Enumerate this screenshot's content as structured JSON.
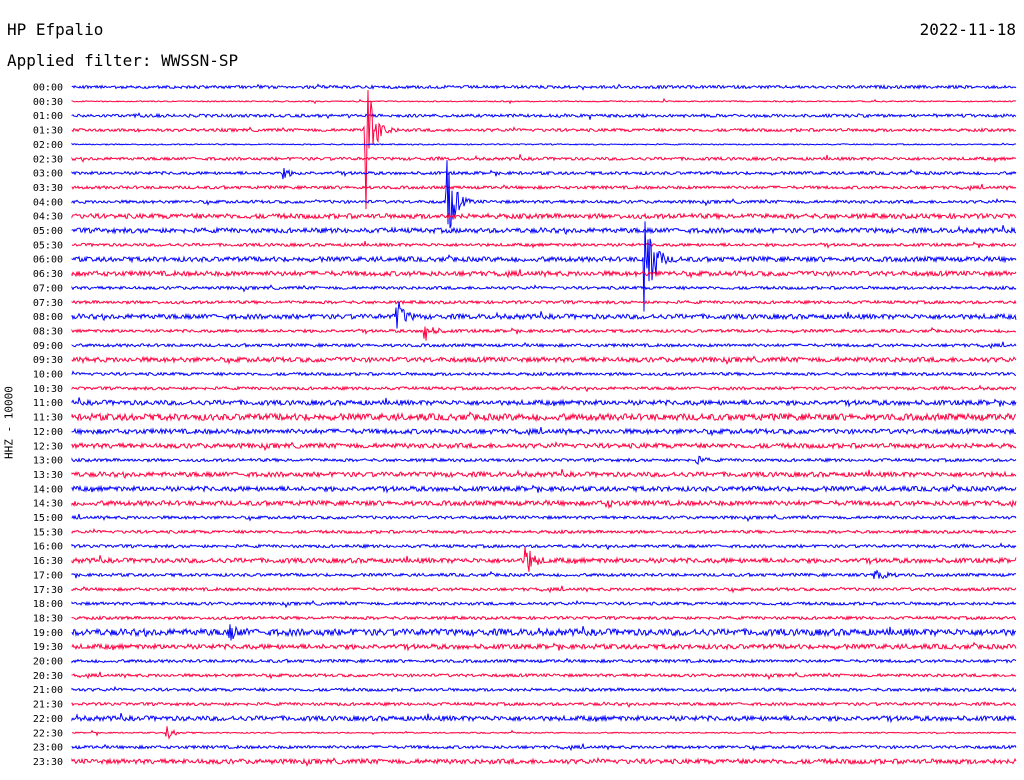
{
  "header": {
    "station": "HP Efpalio",
    "date": "2022-11-18",
    "filter_label": "Applied filter: WWSSN-SP"
  },
  "axis": {
    "channel_label": "HHZ - 10000"
  },
  "colors": {
    "trace_even": "#0000ff",
    "trace_odd": "#ff0040",
    "background": "#ffffff",
    "text": "#000000"
  },
  "chart_data": {
    "type": "line",
    "title": "HP Efpalio",
    "subtitle": "Applied filter: WWSSN-SP",
    "ylabel": "HHZ - 10000",
    "xlabel": "",
    "date": "2022-11-18",
    "row_interval_minutes": 30,
    "row_labels": [
      "00:00",
      "00:30",
      "01:00",
      "01:30",
      "02:00",
      "02:30",
      "03:00",
      "03:30",
      "04:00",
      "04:30",
      "05:00",
      "05:30",
      "06:00",
      "06:30",
      "07:00",
      "07:30",
      "08:00",
      "08:30",
      "09:00",
      "09:30",
      "10:00",
      "10:30",
      "11:00",
      "11:30",
      "12:00",
      "12:30",
      "13:00",
      "13:30",
      "14:00",
      "14:30",
      "15:00",
      "15:30",
      "16:00",
      "16:30",
      "17:00",
      "17:30",
      "18:00",
      "18:30",
      "19:00",
      "19:30",
      "20:00",
      "20:30",
      "21:00",
      "21:30",
      "22:00",
      "22:30",
      "23:00",
      "23:30"
    ],
    "series_colors": [
      "#0000ff",
      "#ff0040"
    ],
    "noise_level": [
      1,
      0,
      1,
      1,
      0,
      1,
      1,
      1,
      1,
      2,
      2,
      1,
      2,
      2,
      1,
      1,
      2,
      1,
      1,
      2,
      1,
      1,
      2,
      3,
      2,
      2,
      1,
      2,
      2,
      2,
      1,
      1,
      1,
      2,
      1,
      1,
      1,
      1,
      3,
      2,
      1,
      1,
      1,
      1,
      2,
      0,
      1,
      2
    ],
    "events": [
      {
        "row": 3,
        "minute": 9.3,
        "amplitude": 100
      },
      {
        "row": 8,
        "minute": 11.9,
        "amplitude": 60
      },
      {
        "row": 12,
        "minute": 18.2,
        "amplitude": 90
      },
      {
        "row": 16,
        "minute": 10.3,
        "amplitude": 20
      },
      {
        "row": 17,
        "minute": 11.2,
        "amplitude": 12
      },
      {
        "row": 33,
        "minute": 14.4,
        "amplitude": 20
      },
      {
        "row": 34,
        "minute": 25.5,
        "amplitude": 15
      },
      {
        "row": 38,
        "minute": 5.0,
        "amplitude": 8
      },
      {
        "row": 45,
        "minute": 3.0,
        "amplitude": 8
      },
      {
        "row": 6,
        "minute": 6.7,
        "amplitude": 5
      },
      {
        "row": 26,
        "minute": 19.8,
        "amplitude": 5
      },
      {
        "row": 29,
        "minute": 17.0,
        "amplitude": 3
      },
      {
        "row": 24,
        "minute": 30.0,
        "amplitude": 5
      }
    ]
  }
}
